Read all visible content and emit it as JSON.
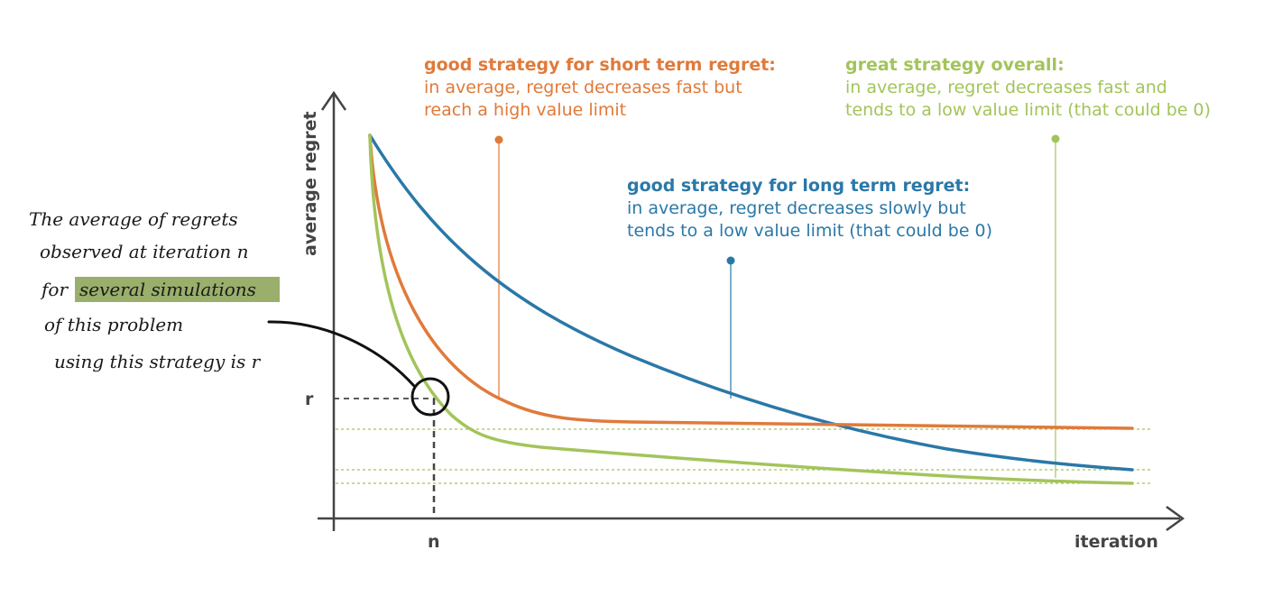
{
  "axes": {
    "y_label": "average regret",
    "x_label": "iteration",
    "r_label": "r",
    "n_label": "n"
  },
  "annotations": {
    "short_term": {
      "title": "good strategy for short term regret:",
      "line1": "in average, regret decreases fast but",
      "line2": "reach a high value limit",
      "color": "#e07a3a"
    },
    "overall": {
      "title": "great strategy overall:",
      "line1": "in average, regret decreases fast and",
      "line2": "tends to a low value limit (that could be 0)",
      "color": "#a3c45a"
    },
    "long_term": {
      "title": "good strategy for long term regret:",
      "line1": "in average, regret decreases slowly but",
      "line2": "tends to a low value limit (that could be 0)",
      "color": "#2a78a8"
    }
  },
  "handwritten": {
    "line1": "The average of regrets",
    "line2": "observed at iteration n",
    "line3_prefix": "for",
    "line3_highlight": "several simulations",
    "line4": "of this problem",
    "line5": "using this strategy is r",
    "highlight_color": "#9aaf6c"
  },
  "colors": {
    "blue": "#2a78a8",
    "orange": "#e07a3a",
    "green": "#a3c45a",
    "axis": "#444444",
    "dotted_guide": "#a3c45a"
  }
}
